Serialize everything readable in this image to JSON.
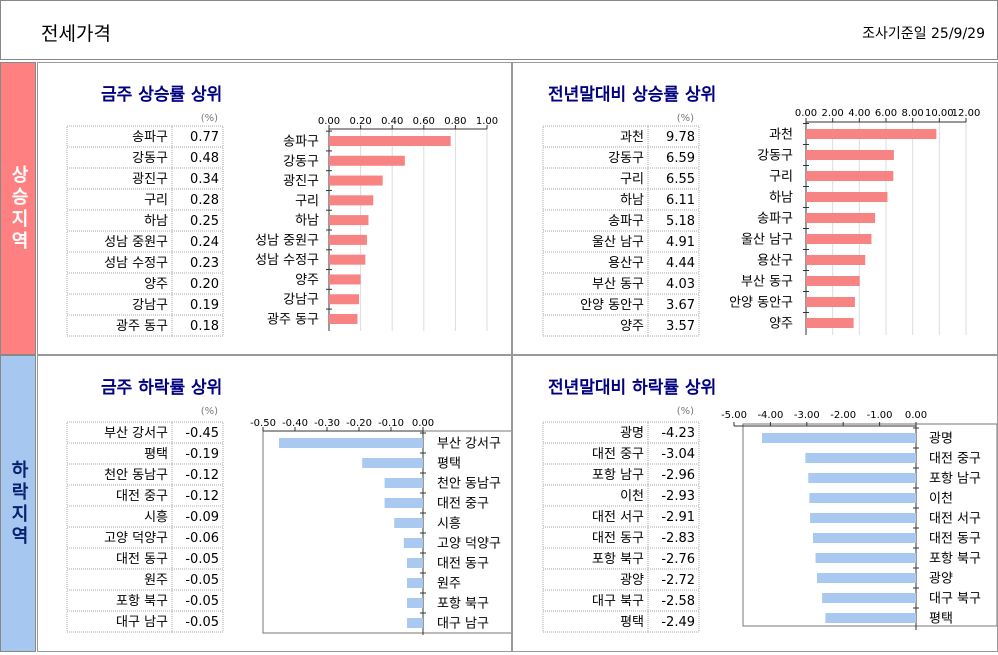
{
  "header": {
    "title": "전세가격",
    "date": "조사기준일 25/9/29"
  },
  "sections": [
    {
      "label": "상승지역"
    },
    {
      "label": "하락지역"
    }
  ],
  "chart_data": [
    {
      "type": "bar",
      "orientation": "horizontal",
      "title": "금주 상승률 상위",
      "unit": "(%)",
      "color": "#f88383",
      "grid": true,
      "categories": [
        "송파구",
        "강동구",
        "광진구",
        "구리",
        "하남",
        "성남 중원구",
        "성남 수정구",
        "양주",
        "강남구",
        "광주 동구"
      ],
      "values": [
        0.77,
        0.48,
        0.34,
        0.28,
        0.25,
        0.24,
        0.23,
        0.2,
        0.19,
        0.18
      ],
      "value_labels": [
        "0.77",
        "0.48",
        "0.34",
        "0.28",
        "0.25",
        "0.24",
        "0.23",
        "0.20",
        "0.19",
        "0.18"
      ],
      "xlim": [
        0,
        1
      ],
      "xticks": [
        {
          "value": 0,
          "label": "0.00"
        },
        {
          "value": 0.2,
          "label": "0.20"
        },
        {
          "value": 0.4,
          "label": "0.40"
        },
        {
          "value": 0.6,
          "label": "0.60"
        },
        {
          "value": 0.8,
          "label": "0.80"
        },
        {
          "value": 1,
          "label": "1.00"
        }
      ]
    },
    {
      "type": "bar",
      "orientation": "horizontal",
      "title": "전년말대비 상승률 상위",
      "unit": "(%)",
      "color": "#f88383",
      "grid": true,
      "categories": [
        "과천",
        "강동구",
        "구리",
        "하남",
        "송파구",
        "울산 남구",
        "용산구",
        "부산 동구",
        "안양 동안구",
        "양주"
      ],
      "values": [
        9.78,
        6.59,
        6.55,
        6.11,
        5.18,
        4.91,
        4.44,
        4.03,
        3.67,
        3.57
      ],
      "value_labels": [
        "9.78",
        "6.59",
        "6.55",
        "6.11",
        "5.18",
        "4.91",
        "4.44",
        "4.03",
        "3.67",
        "3.57"
      ],
      "xlim": [
        0,
        12
      ],
      "xticks": [
        {
          "value": 0,
          "label": "0.00"
        },
        {
          "value": 2,
          "label": "2.00"
        },
        {
          "value": 4,
          "label": "4.00"
        },
        {
          "value": 6,
          "label": "6.00"
        },
        {
          "value": 8,
          "label": "8.00"
        },
        {
          "value": 10,
          "label": "10.00"
        },
        {
          "value": 12,
          "label": "12.00"
        }
      ]
    },
    {
      "type": "bar",
      "orientation": "horizontal",
      "title": "금주 하락률 상위",
      "unit": "(%)",
      "color": "#a9c9f0",
      "frame": true,
      "categories": [
        "부산 강서구",
        "평택",
        "천안 동남구",
        "대전 중구",
        "시흥",
        "고양 덕양구",
        "대전 동구",
        "원주",
        "포항 북구",
        "대구 남구"
      ],
      "values": [
        -0.45,
        -0.19,
        -0.12,
        -0.12,
        -0.09,
        -0.06,
        -0.05,
        -0.05,
        -0.05,
        -0.05
      ],
      "value_labels": [
        "-0.45",
        "-0.19",
        "-0.12",
        "-0.12",
        "-0.09",
        "-0.06",
        "-0.05",
        "-0.05",
        "-0.05",
        "-0.05"
      ],
      "xlim": [
        -0.5,
        0
      ],
      "xticks": [
        {
          "value": -0.5,
          "label": "-0.50"
        },
        {
          "value": -0.4,
          "label": "-0.40"
        },
        {
          "value": -0.3,
          "label": "-0.30"
        },
        {
          "value": -0.2,
          "label": "-0.20"
        },
        {
          "value": -0.1,
          "label": "-0.10"
        },
        {
          "value": 0,
          "label": "0.00"
        }
      ]
    },
    {
      "type": "bar",
      "orientation": "horizontal",
      "title": "전년말대비 하락률 상위",
      "unit": "(%)",
      "color": "#a9c9f0",
      "frame": true,
      "categories": [
        "광명",
        "대전 중구",
        "포항 남구",
        "이천",
        "대전 서구",
        "대전 동구",
        "포항 북구",
        "광양",
        "대구 북구",
        "평택"
      ],
      "values": [
        -4.23,
        -3.04,
        -2.96,
        -2.93,
        -2.91,
        -2.83,
        -2.76,
        -2.72,
        -2.58,
        -2.49
      ],
      "value_labels": [
        "-4.23",
        "-3.04",
        "-2.96",
        "-2.93",
        "-2.91",
        "-2.83",
        "-2.76",
        "-2.72",
        "-2.58",
        "-2.49"
      ],
      "xlim": [
        -5,
        0
      ],
      "xticks": [
        {
          "value": -5,
          "label": "-5.00"
        },
        {
          "value": -4,
          "label": "-4.00"
        },
        {
          "value": -3,
          "label": "-3.00"
        },
        {
          "value": -2,
          "label": "-2.00"
        },
        {
          "value": -1,
          "label": "-1.00"
        },
        {
          "value": 0,
          "label": "0.00"
        }
      ]
    }
  ]
}
